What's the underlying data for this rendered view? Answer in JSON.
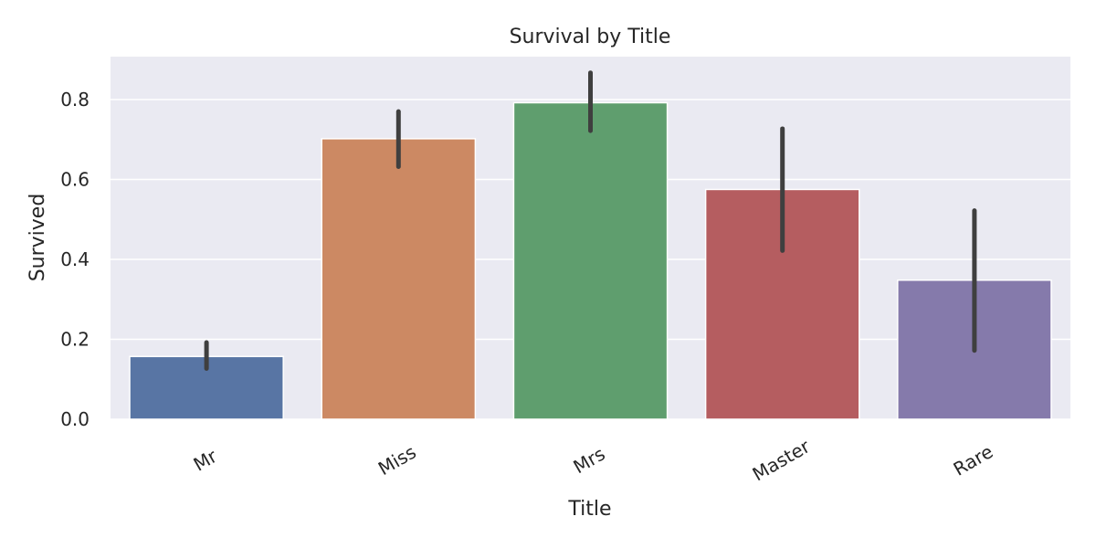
{
  "chart_data": {
    "type": "bar",
    "title": "Survival by Title",
    "xlabel": "Title",
    "ylabel": "Survived",
    "categories": [
      "Mr",
      "Miss",
      "Mrs",
      "Master",
      "Rare"
    ],
    "values": [
      0.157,
      0.702,
      0.792,
      0.575,
      0.348
    ],
    "error_low": [
      0.127,
      0.632,
      0.722,
      0.422,
      0.172
    ],
    "error_high": [
      0.192,
      0.77,
      0.867,
      0.727,
      0.522
    ],
    "colors": [
      "#5875a4",
      "#cc8963",
      "#5f9e6e",
      "#b55d60",
      "#857aab"
    ],
    "error_color": "#3f3f3f",
    "ylim": [
      0,
      0.9
    ],
    "yticks": [
      0.0,
      0.2,
      0.4,
      0.6,
      0.8
    ],
    "ytick_labels": [
      "0.0",
      "0.2",
      "0.4",
      "0.6",
      "0.8"
    ],
    "grid": true,
    "background": "#eaeaf2",
    "legend": "none"
  }
}
